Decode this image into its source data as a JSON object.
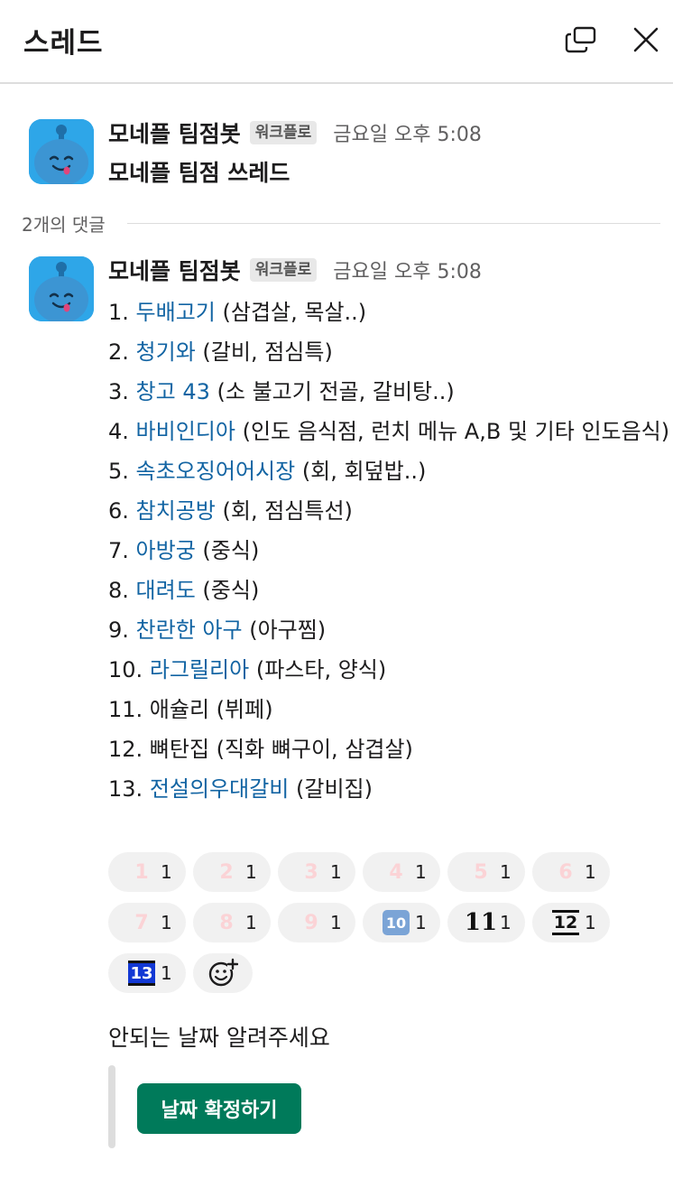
{
  "header": {
    "title": "스레드",
    "popout_icon": "popout-window-icon",
    "close_icon": "close-icon"
  },
  "parent_message": {
    "sender": "모네플 팀점봇",
    "badge": "워크플로",
    "timestamp": "금요일 오후 5:08",
    "text": "모네플 팀점 쓰레드"
  },
  "reply_count": "2개의 댓글",
  "reply": {
    "sender": "모네플 팀점봇",
    "badge": "워크플로",
    "timestamp": "금요일 오후 5:08",
    "items": [
      {
        "num": "1.",
        "link": "두배고기",
        "rest": " (삼겹살, 목살..)"
      },
      {
        "num": "2.",
        "link": "청기와",
        "rest": " (갈비, 점심특)"
      },
      {
        "num": "3.",
        "link": "창고 43",
        "rest": " (소 불고기 전골, 갈비탕..)"
      },
      {
        "num": "4.",
        "link": "바비인디아",
        "rest": " (인도 음식점, 런치 메뉴 A,B 및 기타 인도음식)"
      },
      {
        "num": "5.",
        "link": "속초오징어어시장",
        "rest": " (회, 회덮밥..)"
      },
      {
        "num": "6.",
        "link": "참치공방",
        "rest": " (회, 점심특선)"
      },
      {
        "num": "7.",
        "link": "아방궁",
        "rest": " (중식)"
      },
      {
        "num": "8.",
        "link": "대려도",
        "rest": " (중식)"
      },
      {
        "num": "9.",
        "link": "찬란한 아구",
        "rest": " (아구찜)"
      },
      {
        "num": "10.",
        "link": "라그릴리아",
        "rest": " (파스타, 양식)"
      },
      {
        "num": "11.",
        "link": "",
        "rest": " 애슐리 (뷔페)"
      },
      {
        "num": "12.",
        "link": "",
        "rest": " 뼈탄집 (직화 뼈구이, 삼겹살)"
      },
      {
        "num": "13.",
        "link": "전설의우대갈비",
        "rest": " (갈비집)"
      }
    ],
    "reactions": [
      {
        "emoji": "1",
        "count": "1"
      },
      {
        "emoji": "2",
        "count": "1"
      },
      {
        "emoji": "3",
        "count": "1"
      },
      {
        "emoji": "4",
        "count": "1"
      },
      {
        "emoji": "5",
        "count": "1"
      },
      {
        "emoji": "6",
        "count": "1"
      },
      {
        "emoji": "7",
        "count": "1"
      },
      {
        "emoji": "8",
        "count": "1"
      },
      {
        "emoji": "9",
        "count": "1"
      },
      {
        "emoji": "10",
        "count": "1"
      },
      {
        "emoji": "11",
        "count": "1"
      },
      {
        "emoji": "12",
        "count": "1"
      },
      {
        "emoji": "13",
        "count": "1"
      }
    ],
    "add_reaction_icon": "add-reaction-icon",
    "prompt": "안되는 날짜 알려주세요",
    "button_label": "날짜 확정하기"
  },
  "colors": {
    "link": "#1264a3",
    "button": "#007a5a",
    "avatar": "#2ea6e8"
  }
}
